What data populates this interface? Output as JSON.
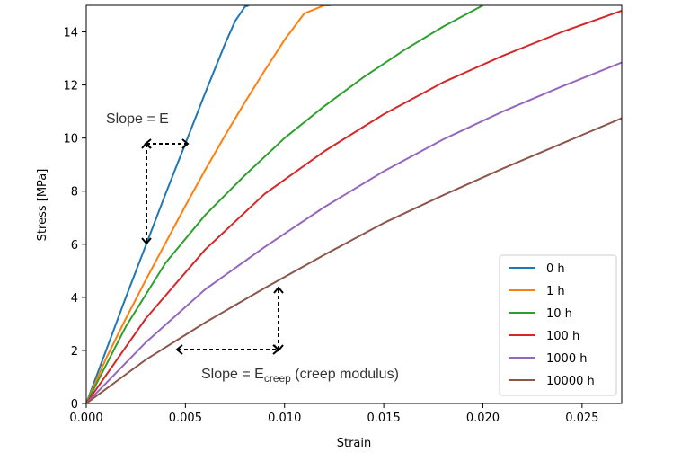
{
  "chart_data": {
    "type": "line",
    "title": "",
    "xlabel": "Strain",
    "ylabel": "Stress [MPa]",
    "xlim": [
      0,
      0.027
    ],
    "ylim": [
      0,
      15
    ],
    "xticks": [
      0.0,
      0.005,
      0.01,
      0.015,
      0.02,
      0.025
    ],
    "xtick_labels": [
      "0.000",
      "0.005",
      "0.010",
      "0.015",
      "0.020",
      "0.025"
    ],
    "yticks": [
      0,
      2,
      4,
      6,
      8,
      10,
      12,
      14
    ],
    "ytick_labels": [
      "0",
      "2",
      "4",
      "6",
      "8",
      "10",
      "12",
      "14"
    ],
    "grid": false,
    "legend_position": "bottom-right",
    "series": [
      {
        "name": "0 h",
        "color": "#1f77b4",
        "x": [
          0,
          0.001,
          0.002,
          0.003,
          0.004,
          0.005,
          0.006,
          0.007,
          0.0075,
          0.008,
          0.0082
        ],
        "y": [
          0,
          2.0,
          4.0,
          5.95,
          7.9,
          9.8,
          11.7,
          13.55,
          14.4,
          14.95,
          15.0
        ]
      },
      {
        "name": "1 h",
        "color": "#ff7f0e",
        "x": [
          0,
          0.001,
          0.002,
          0.003,
          0.004,
          0.005,
          0.006,
          0.007,
          0.008,
          0.009,
          0.01,
          0.011,
          0.012,
          0.0123
        ],
        "y": [
          0,
          1.7,
          3.2,
          4.65,
          6.05,
          7.45,
          8.8,
          10.1,
          11.35,
          12.55,
          13.7,
          14.7,
          15.0,
          15.0
        ]
      },
      {
        "name": "10 h",
        "color": "#2ca02c",
        "x": [
          0,
          0.002,
          0.004,
          0.006,
          0.008,
          0.01,
          0.012,
          0.014,
          0.016,
          0.018,
          0.02
        ],
        "y": [
          0,
          2.9,
          5.3,
          7.1,
          8.6,
          10.0,
          11.2,
          12.3,
          13.3,
          14.2,
          15.0
        ]
      },
      {
        "name": "100 h",
        "color": "#d62728",
        "x": [
          0,
          0.003,
          0.006,
          0.009,
          0.012,
          0.015,
          0.018,
          0.021,
          0.024,
          0.027
        ],
        "y": [
          0,
          3.2,
          5.8,
          7.9,
          9.5,
          10.9,
          12.1,
          13.1,
          14.0,
          14.8
        ]
      },
      {
        "name": "1000 h",
        "color": "#9467bd",
        "x": [
          0,
          0.003,
          0.006,
          0.009,
          0.012,
          0.015,
          0.018,
          0.021,
          0.024,
          0.027
        ],
        "y": [
          0,
          2.3,
          4.3,
          5.9,
          7.4,
          8.75,
          9.95,
          11.0,
          11.95,
          12.85
        ]
      },
      {
        "name": "10000 h",
        "color": "#8c564b",
        "x": [
          0,
          0.003,
          0.006,
          0.009,
          0.012,
          0.015,
          0.018,
          0.021,
          0.024,
          0.027
        ],
        "y": [
          0,
          1.65,
          3.05,
          4.35,
          5.6,
          6.8,
          7.85,
          8.85,
          9.8,
          10.75
        ]
      }
    ],
    "annotations": [
      {
        "text": "Slope = E"
      },
      {
        "text_prefix": "Slope = E",
        "subscript": "creep",
        "text_suffix": " (creep modulus)"
      }
    ]
  }
}
